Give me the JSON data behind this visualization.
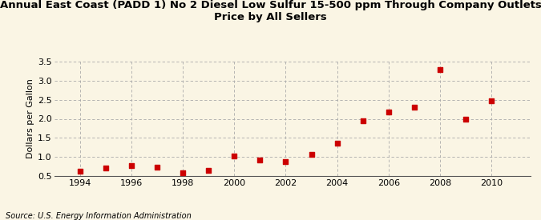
{
  "title": "Annual East Coast (PADD 1) No 2 Diesel Low Sulfur 15-500 ppm Through Company Outlets\nPrice by All Sellers",
  "ylabel": "Dollars per Gallon",
  "source": "Source: U.S. Energy Information Administration",
  "background_color": "#faf5e4",
  "marker_color": "#cc0000",
  "years": [
    1994,
    1995,
    1996,
    1997,
    1998,
    1999,
    2000,
    2001,
    2002,
    2003,
    2004,
    2005,
    2006,
    2007,
    2008,
    2009,
    2010
  ],
  "values": [
    0.63,
    0.7,
    0.78,
    0.73,
    0.58,
    0.65,
    1.03,
    0.93,
    0.88,
    1.07,
    1.35,
    1.94,
    2.17,
    2.3,
    3.29,
    1.99,
    2.47
  ],
  "xlim": [
    1993.0,
    2011.5
  ],
  "ylim": [
    0.5,
    3.5
  ],
  "yticks": [
    0.5,
    1.0,
    1.5,
    2.0,
    2.5,
    3.0,
    3.5
  ],
  "xticks": [
    1994,
    1996,
    1998,
    2000,
    2002,
    2004,
    2006,
    2008,
    2010
  ],
  "title_fontsize": 9.5,
  "label_fontsize": 8,
  "tick_fontsize": 8,
  "source_fontsize": 7
}
